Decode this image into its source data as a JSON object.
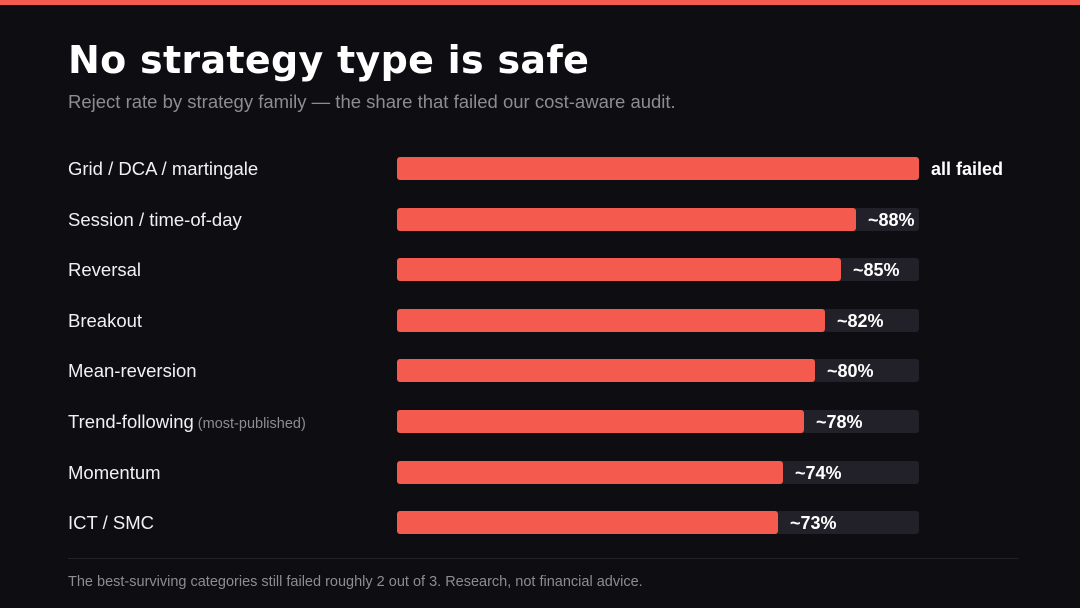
{
  "accent_color": "#f45a4e",
  "track_color": "#22212a",
  "background_color": "#0e0d12",
  "title": "No strategy type is safe",
  "subtitle": "Reject rate by strategy family — the share that failed our cost-aware audit.",
  "footnote": "The best-surviving categories still failed roughly 2 out of 3. Research, not financial advice.",
  "chart_data": {
    "type": "bar",
    "orientation": "horizontal",
    "title": "No strategy type is safe",
    "subtitle": "Reject rate by strategy family — the share that failed our cost-aware audit.",
    "xlim": [
      0,
      100
    ],
    "unit": "%",
    "grid": false,
    "legend": "none",
    "categories": [
      "Grid / DCA / martingale",
      "Session / time-of-day",
      "Reversal",
      "Breakout",
      "Mean-reversion",
      "Trend-following",
      "Momentum",
      "ICT / SMC"
    ],
    "category_notes": [
      "",
      "",
      "",
      "",
      "",
      "(most-published)",
      "",
      ""
    ],
    "values": [
      100,
      88,
      85,
      82,
      80,
      78,
      74,
      73
    ],
    "value_labels": [
      "all failed",
      "~88%",
      "~85%",
      "~82%",
      "~80%",
      "~78%",
      "~74%",
      "~73%"
    ]
  }
}
